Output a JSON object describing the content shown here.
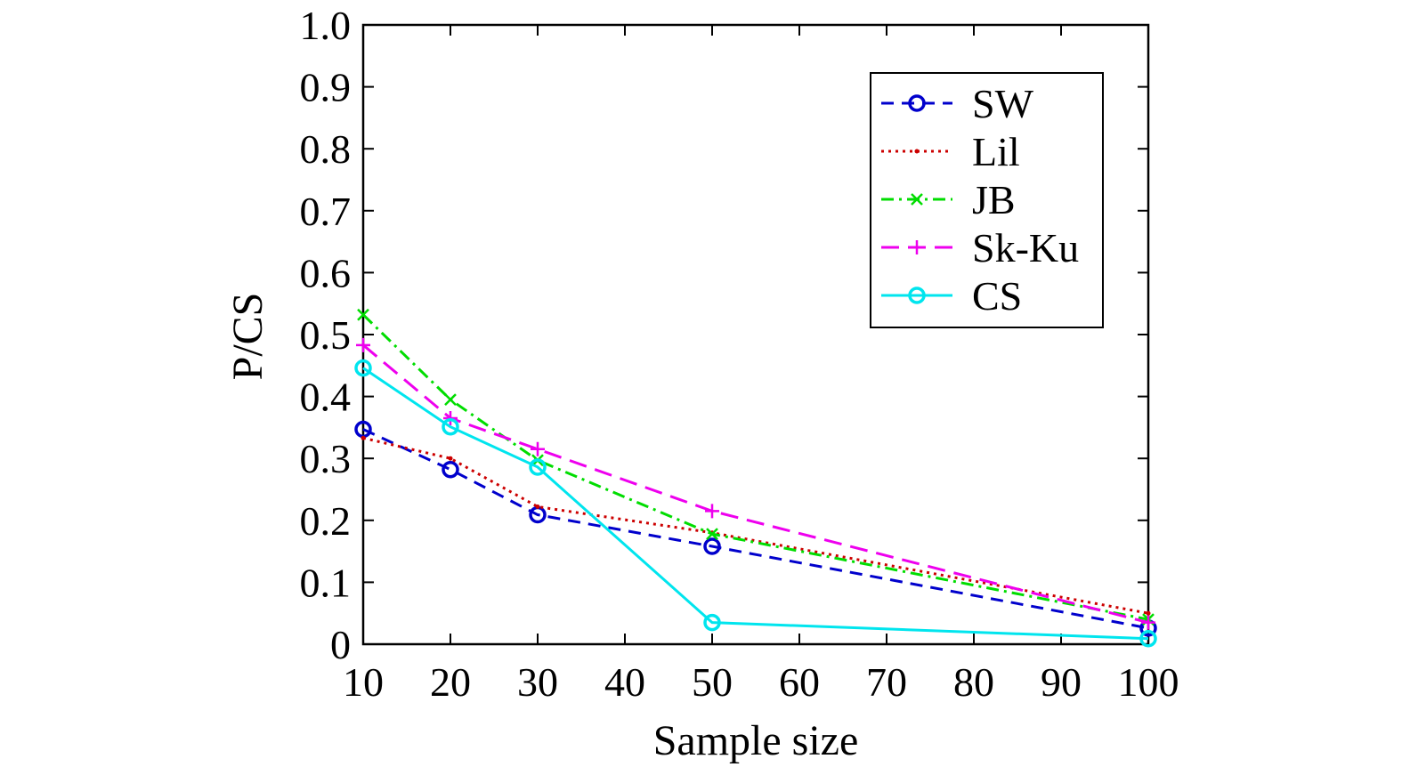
{
  "chart_data": {
    "type": "line",
    "title": "",
    "xlabel": "Sample size",
    "ylabel": "P/CS",
    "xlim": [
      10,
      100
    ],
    "ylim": [
      0,
      1.0
    ],
    "xticks": [
      10,
      20,
      30,
      40,
      50,
      60,
      70,
      80,
      90,
      100
    ],
    "yticks": [
      0,
      0.1,
      0.2,
      0.3,
      0.4,
      0.5,
      0.6,
      0.7,
      0.8,
      0.9,
      1.0
    ],
    "xtick_labels": [
      "10",
      "20",
      "30",
      "40",
      "50",
      "60",
      "70",
      "80",
      "90",
      "100"
    ],
    "ytick_labels": [
      "0",
      "0.1",
      "0.2",
      "0.3",
      "0.4",
      "0.5",
      "0.6",
      "0.7",
      "0.8",
      "0.9",
      "1.0"
    ],
    "grid": false,
    "legend_position": "top-right",
    "x": [
      10,
      20,
      30,
      50,
      100
    ],
    "series": [
      {
        "name": "SW",
        "values": [
          0.347,
          0.282,
          0.209,
          0.158,
          0.026
        ],
        "color": "#0000cc",
        "dash": "dashed",
        "marker": "circle"
      },
      {
        "name": "Lil",
        "values": [
          0.333,
          0.3,
          0.222,
          0.18,
          0.05
        ],
        "color": "#cc0000",
        "dash": "dotted",
        "marker": "point"
      },
      {
        "name": "JB",
        "values": [
          0.532,
          0.395,
          0.297,
          0.178,
          0.04
        ],
        "color": "#00dd00",
        "dash": "dashdot",
        "marker": "x"
      },
      {
        "name": "Sk-Ku",
        "values": [
          0.483,
          0.365,
          0.315,
          0.215,
          0.035
        ],
        "color": "#ee00ee",
        "dash": "longdash",
        "marker": "plus"
      },
      {
        "name": "CS",
        "values": [
          0.446,
          0.351,
          0.286,
          0.035,
          0.009
        ],
        "color": "#00e5ee",
        "dash": "solid",
        "marker": "circle"
      }
    ]
  }
}
